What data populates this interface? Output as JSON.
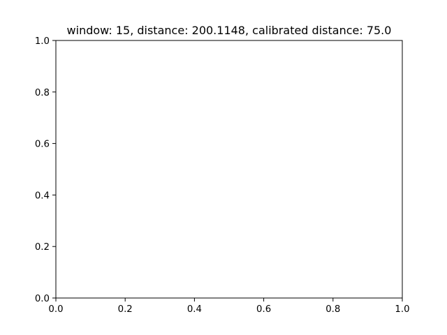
{
  "chart_data": {
    "type": "line",
    "title": "window: 15, distance: 200.1148, calibrated distance: 75.0",
    "xlabel": "",
    "ylabel": "",
    "xlim": [
      0.0,
      1.0
    ],
    "ylim": [
      0.0,
      1.0
    ],
    "xticks": [
      "0.0",
      "0.2",
      "0.4",
      "0.6",
      "0.8",
      "1.0"
    ],
    "yticks": [
      "0.0",
      "0.2",
      "0.4",
      "0.6",
      "0.8",
      "1.0"
    ],
    "series": [],
    "grid": false,
    "legend": "none"
  },
  "colors": {
    "background": "#ffffff",
    "axes": "#000000"
  }
}
